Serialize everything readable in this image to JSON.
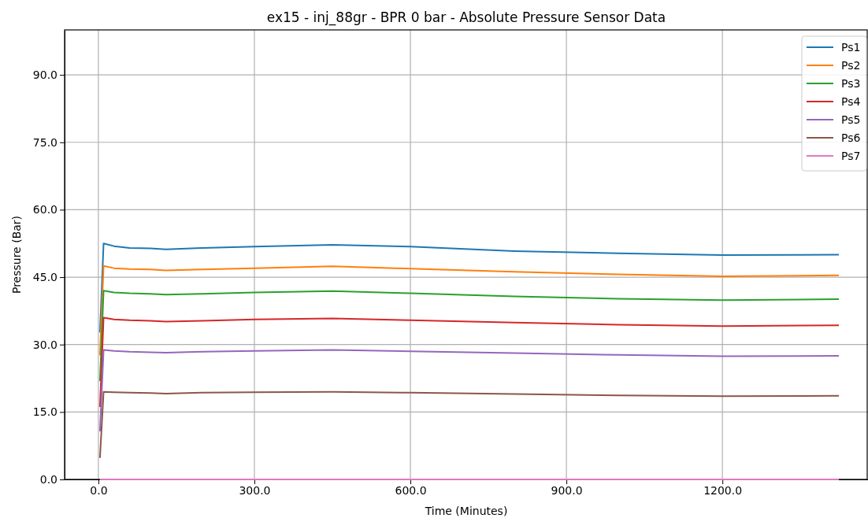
{
  "chart_data": {
    "type": "line",
    "title": "ex15 - inj_88gr - BPR 0 bar - Absolute Pressure Sensor Data",
    "xlabel": "Time (Minutes)",
    "ylabel": "Pressure (Bar)",
    "x": [
      3,
      10,
      30,
      60,
      100,
      130,
      200,
      300,
      450,
      600,
      800,
      1000,
      1200,
      1424
    ],
    "series": [
      {
        "name": "Ps1",
        "color": "#1f77b4",
        "values": [
          32.7,
          52.5,
          51.9,
          51.5,
          51.4,
          51.2,
          51.5,
          51.8,
          52.2,
          51.8,
          50.8,
          50.3,
          49.9,
          50.0
        ]
      },
      {
        "name": "Ps2",
        "color": "#ff7f0e",
        "values": [
          27.6,
          47.5,
          47.0,
          46.8,
          46.7,
          46.5,
          46.7,
          47.0,
          47.4,
          46.9,
          46.2,
          45.6,
          45.2,
          45.4
        ]
      },
      {
        "name": "Ps3",
        "color": "#2ca02c",
        "values": [
          21.9,
          42.0,
          41.6,
          41.4,
          41.3,
          41.1,
          41.3,
          41.6,
          41.9,
          41.4,
          40.7,
          40.2,
          39.9,
          40.1
        ]
      },
      {
        "name": "Ps4",
        "color": "#d62728",
        "values": [
          16.1,
          36.0,
          35.6,
          35.4,
          35.3,
          35.1,
          35.3,
          35.6,
          35.8,
          35.4,
          34.9,
          34.4,
          34.1,
          34.3
        ]
      },
      {
        "name": "Ps5",
        "color": "#9467bd",
        "values": [
          10.7,
          28.8,
          28.6,
          28.4,
          28.3,
          28.2,
          28.4,
          28.6,
          28.8,
          28.5,
          28.1,
          27.7,
          27.4,
          27.5
        ]
      },
      {
        "name": "Ps6",
        "color": "#8c564b",
        "values": [
          4.8,
          19.5,
          19.4,
          19.3,
          19.2,
          19.1,
          19.3,
          19.4,
          19.5,
          19.3,
          19.0,
          18.7,
          18.5,
          18.6
        ]
      },
      {
        "name": "Ps7",
        "color": "#e377c2",
        "values": [
          0,
          0,
          0,
          0,
          0,
          0,
          0,
          0,
          0,
          0,
          0,
          0,
          0,
          0
        ]
      }
    ],
    "xlim": [
      -65,
      1480
    ],
    "ylim": [
      0,
      100
    ],
    "xticks": [
      {
        "value": 0,
        "label": "0.0"
      },
      {
        "value": 300,
        "label": "300.0"
      },
      {
        "value": 600,
        "label": "600.0"
      },
      {
        "value": 900,
        "label": "900.0"
      },
      {
        "value": 1200,
        "label": "1200.0"
      }
    ],
    "yticks": [
      {
        "value": 0,
        "label": "0.0"
      },
      {
        "value": 15,
        "label": "15.0"
      },
      {
        "value": 30,
        "label": "30.0"
      },
      {
        "value": 45,
        "label": "45.0"
      },
      {
        "value": 60,
        "label": "60.0"
      },
      {
        "value": 75,
        "label": "75.0"
      },
      {
        "value": 90,
        "label": "90.0"
      }
    ],
    "grid": true,
    "legend": "top right",
    "line_style": "solid"
  }
}
